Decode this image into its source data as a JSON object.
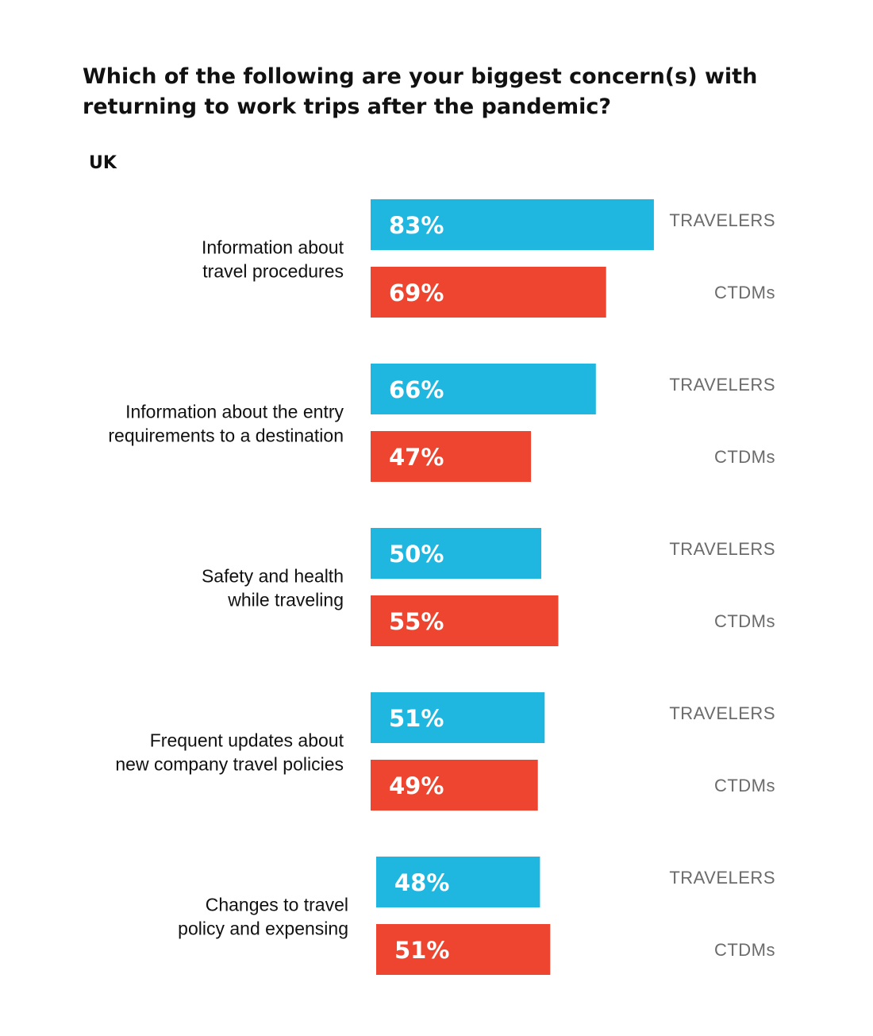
{
  "chart_data": {
    "type": "bar",
    "orientation": "horizontal",
    "title_lines": [
      "Which of the following are your biggest concern(s) with",
      "returning to work trips after the pandemic?"
    ],
    "subtitle": "UK",
    "categories": [
      [
        "Information about",
        "travel procedures"
      ],
      [
        "Information about the entry",
        "requirements to a destination"
      ],
      [
        "Safety and health",
        "while traveling"
      ],
      [
        "Frequent updates about",
        "new company travel policies"
      ],
      [
        "Changes to travel",
        "policy and expensing"
      ]
    ],
    "series": [
      {
        "name": "TRAVELERS",
        "color": "#1fb6e0",
        "values": [
          83,
          66,
          50,
          51,
          48
        ]
      },
      {
        "name": "CTDMs",
        "color": "#ee4530",
        "values": [
          69,
          47,
          55,
          49,
          51
        ]
      }
    ],
    "value_suffix": "%",
    "xlim": [
      0,
      100
    ],
    "grid": false,
    "legend": "inline-right"
  }
}
